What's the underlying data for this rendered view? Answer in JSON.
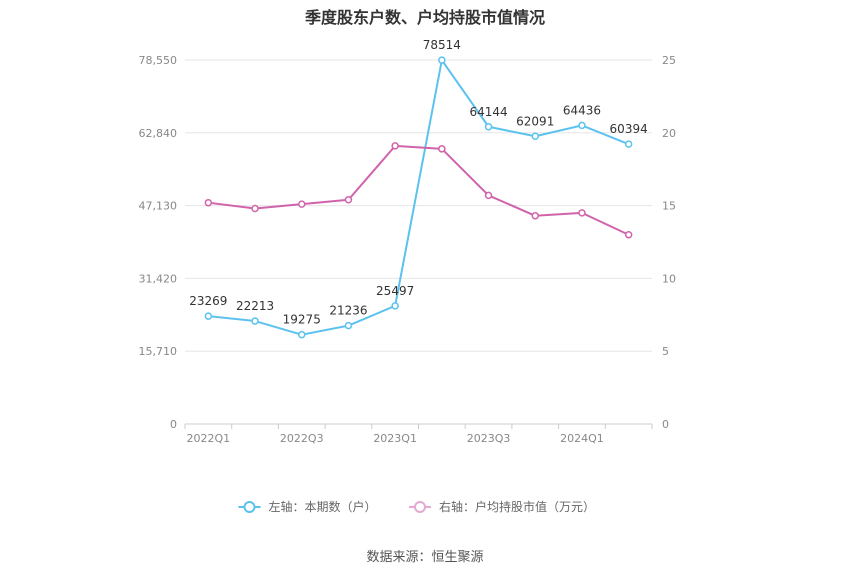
{
  "chart_data": {
    "type": "line",
    "title": "季度股东户数、户均持股市值情况",
    "categories": [
      "2022Q1",
      "2022Q2",
      "2022Q3",
      "2022Q4",
      "2023Q1",
      "2023Q2",
      "2023Q3",
      "2023Q4",
      "2024Q1",
      "2024Q2"
    ],
    "x_tick_labels": [
      "2022Q1",
      "",
      "2022Q3",
      "",
      "2023Q1",
      "",
      "2023Q3",
      "",
      "2024Q1",
      ""
    ],
    "left_axis": {
      "ylim": [
        0,
        78550
      ],
      "ticks": [
        "0",
        "15,710",
        "31,420",
        "47,130",
        "62,840",
        "78,550"
      ]
    },
    "right_axis": {
      "ylim": [
        0,
        25
      ],
      "ticks": [
        "0",
        "5",
        "10",
        "15",
        "20",
        "25"
      ]
    },
    "series": [
      {
        "name": "左轴：本期数（户）",
        "axis": "left",
        "color": "#5bc2ef",
        "values": [
          23269,
          22213,
          19275,
          21236,
          25497,
          78514,
          64144,
          62091,
          64436,
          60394
        ],
        "labels": [
          "23269",
          "22213",
          "19275",
          "21236",
          "25497",
          "78514",
          "64144",
          "62091",
          "64436",
          "60394"
        ]
      },
      {
        "name": "右轴：户均持股市值（万元）",
        "axis": "right",
        "color": "#d063ab",
        "values": [
          15.2,
          14.8,
          15.1,
          15.4,
          19.1,
          18.9,
          15.7,
          14.3,
          14.5,
          13.0
        ]
      }
    ],
    "grid": true,
    "legend_position": "bottom"
  },
  "source": "数据来源：恒生聚源"
}
